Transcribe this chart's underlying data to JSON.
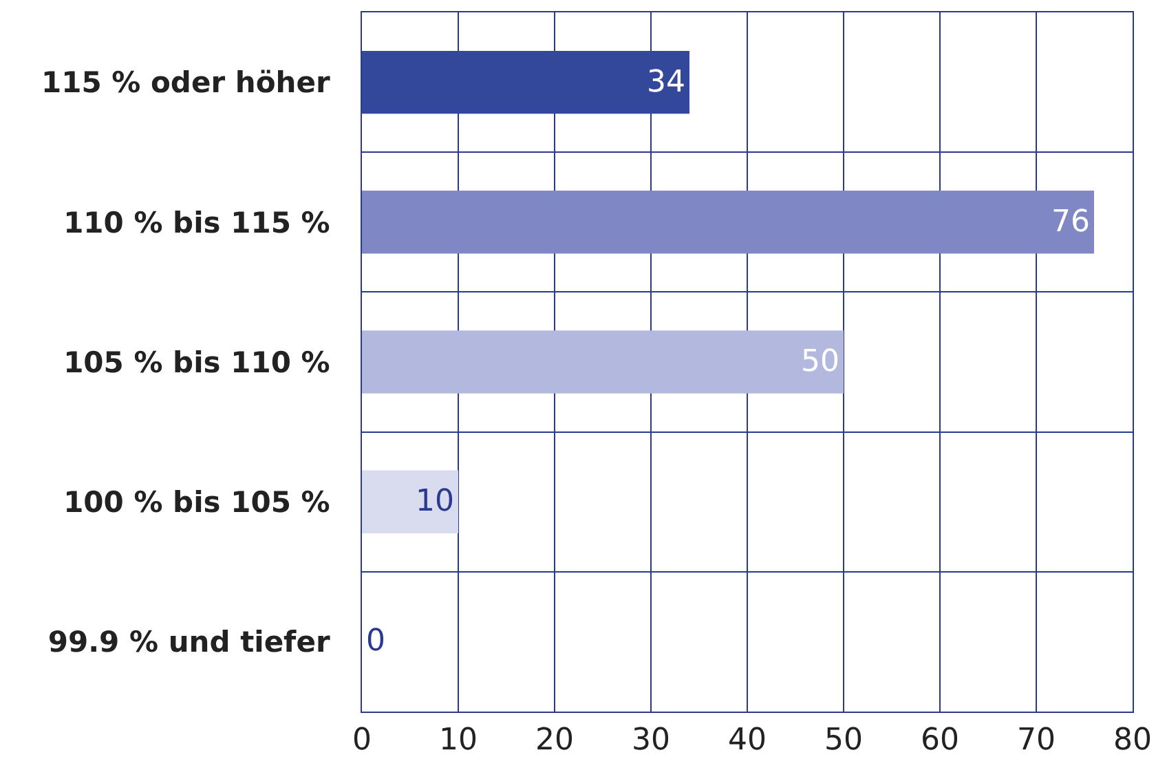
{
  "chart_data": {
    "type": "bar",
    "orientation": "horizontal",
    "categories": [
      "115 % oder höher",
      "110 % bis 115 %",
      "105 % bis 110 %",
      "100 % bis 105 %",
      "99.9 % und tiefer"
    ],
    "values": [
      34,
      76,
      50,
      10,
      0
    ],
    "colors": [
      "#33479b",
      "#7f88c4",
      "#b3b9de",
      "#d9dcef",
      "#d9dcef"
    ],
    "xlim": [
      0,
      80
    ],
    "xticks": [
      0,
      10,
      20,
      30,
      40,
      50,
      60,
      70,
      80
    ],
    "grid": true,
    "data_labels": true
  }
}
